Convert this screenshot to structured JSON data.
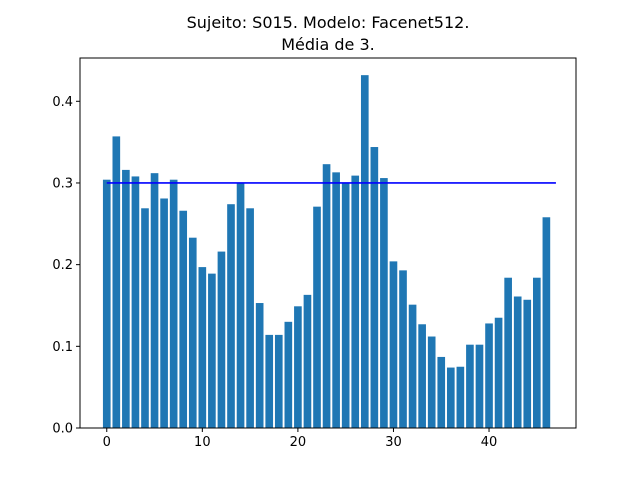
{
  "chart_data": {
    "type": "bar",
    "title_lines": [
      "Sujeito: S015. Modelo: Facenet512.",
      "Média de 3."
    ],
    "xlabel": "",
    "ylabel": "",
    "x": [
      0,
      1,
      2,
      3,
      4,
      5,
      6,
      7,
      8,
      9,
      10,
      11,
      12,
      13,
      14,
      15,
      16,
      17,
      18,
      19,
      20,
      21,
      22,
      23,
      24,
      25,
      26,
      27,
      28,
      29,
      30,
      31,
      32,
      33,
      34,
      35,
      36,
      37,
      38,
      39,
      40,
      41,
      42,
      43,
      44,
      45,
      46
    ],
    "values": [
      0.304,
      0.357,
      0.316,
      0.308,
      0.269,
      0.312,
      0.281,
      0.304,
      0.266,
      0.233,
      0.197,
      0.189,
      0.216,
      0.274,
      0.3,
      0.269,
      0.153,
      0.114,
      0.114,
      0.13,
      0.149,
      0.163,
      0.271,
      0.323,
      0.313,
      0.3,
      0.309,
      0.432,
      0.344,
      0.306,
      0.204,
      0.193,
      0.151,
      0.127,
      0.112,
      0.087,
      0.074,
      0.075,
      0.102,
      0.102,
      0.128,
      0.135,
      0.184,
      0.161,
      0.157,
      0.184,
      0.258
    ],
    "bar_color": "#1f77b4",
    "reference_line": {
      "y": 0.3,
      "x_range": [
        0,
        47
      ],
      "color": "#0000ff"
    },
    "xlim": [
      -2.8,
      49.1
    ],
    "ylim": [
      0,
      0.453
    ],
    "xticks": [
      0,
      10,
      20,
      30,
      40
    ],
    "xtick_labels": [
      "0",
      "10",
      "20",
      "30",
      "40"
    ],
    "yticks": [
      0.0,
      0.1,
      0.2,
      0.3,
      0.4
    ],
    "ytick_labels": [
      "0.0",
      "0.1",
      "0.2",
      "0.3",
      "0.4"
    ],
    "grid": false,
    "legend": "none"
  }
}
